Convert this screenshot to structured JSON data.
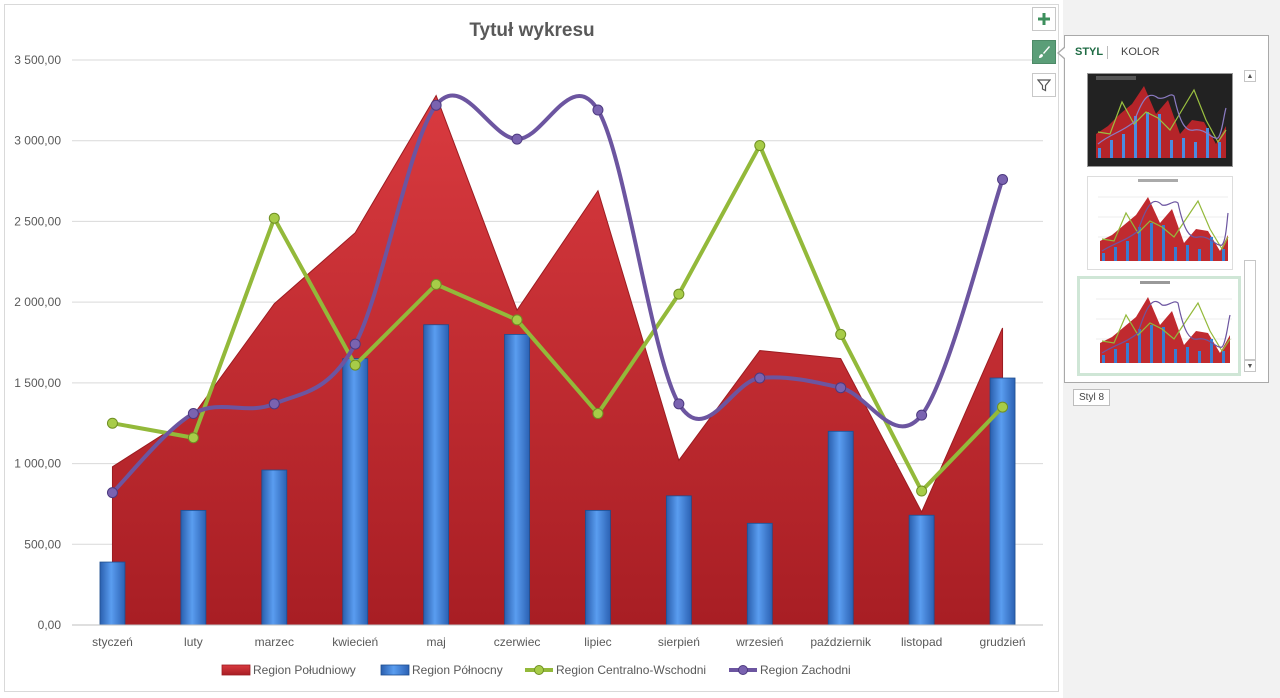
{
  "chart_data": {
    "type": "combo",
    "title": "Tytuł wykresu",
    "categories": [
      "styczeń",
      "luty",
      "marzec",
      "kwiecień",
      "maj",
      "czerwiec",
      "lipiec",
      "sierpień",
      "wrzesień",
      "październik",
      "listopad",
      "grudzień"
    ],
    "ylim": [
      0,
      3500
    ],
    "yticks": [
      "0,00",
      "500,00",
      "1 000,00",
      "1 500,00",
      "2 000,00",
      "2 500,00",
      "3 000,00",
      "3 500,00"
    ],
    "grid": true,
    "legend_position": "bottom",
    "series": [
      {
        "name": "Region Południowy",
        "kind": "area",
        "color": "#c0282d",
        "values": [
          980,
          1300,
          1990,
          2430,
          3280,
          1950,
          2690,
          1020,
          1700,
          1650,
          700,
          1840
        ]
      },
      {
        "name": "Region Północny",
        "kind": "bar",
        "color": "#3a7bd0",
        "values": [
          390,
          710,
          960,
          1650,
          1860,
          1800,
          710,
          800,
          630,
          1200,
          680,
          1530
        ]
      },
      {
        "name": "Region Centralno-Wschodni",
        "kind": "line",
        "color": "#93b93a",
        "values": [
          1250,
          1160,
          2520,
          1610,
          2110,
          1890,
          1310,
          2050,
          2970,
          1800,
          830,
          1350
        ]
      },
      {
        "name": "Region Zachodni",
        "kind": "smooth-line",
        "color": "#6c55a0",
        "values": [
          820,
          1310,
          1370,
          1740,
          3220,
          3010,
          3190,
          1370,
          1530,
          1470,
          1300,
          2760
        ]
      }
    ]
  },
  "side_buttons": {
    "add": "add-element",
    "style": "chart-style",
    "filter": "chart-filter"
  },
  "style_panel": {
    "tab_style": "STYL",
    "tab_color": "KOLOR",
    "tooltip": "Styl 8"
  }
}
